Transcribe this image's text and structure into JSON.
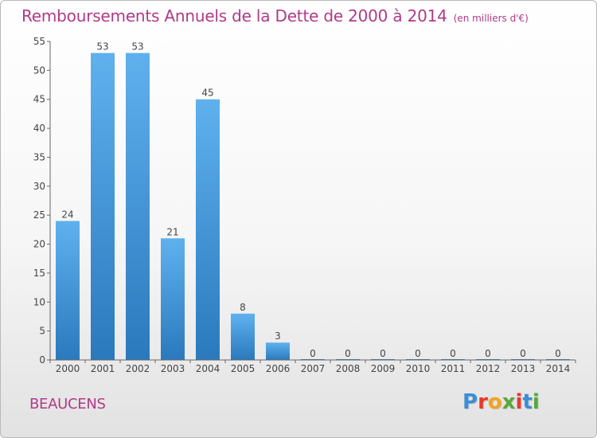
{
  "header": {
    "title": "Remboursements Annuels de la Dette de 2000 à 2014",
    "unit": "(en milliers d'€)"
  },
  "footer": {
    "commune": "BEAUCENS",
    "brand": {
      "letters": [
        "P",
        "r",
        "o",
        "x",
        "i",
        "t",
        "i"
      ],
      "colors": [
        "#3a8ed6",
        "#e8392f",
        "#f2a41f",
        "#58a83a",
        "#e8392f",
        "#3a8ed6",
        "#58a83a"
      ]
    }
  },
  "chart_data": {
    "type": "bar",
    "categories": [
      "2000",
      "2001",
      "2002",
      "2003",
      "2004",
      "2005",
      "2006",
      "2007",
      "2008",
      "2009",
      "2010",
      "2011",
      "2012",
      "2013",
      "2014"
    ],
    "values": [
      24,
      53,
      53,
      21,
      45,
      8,
      3,
      0,
      0,
      0,
      0,
      0,
      0,
      0,
      0
    ],
    "data_labels": [
      "24",
      "53",
      "53",
      "21",
      "45",
      "8",
      "3",
      "0",
      "0",
      "0",
      "0",
      "0",
      "0",
      "0",
      "0"
    ],
    "title": "Remboursements Annuels de la Dette de 2000 à 2014",
    "ylim": [
      0,
      55
    ],
    "yticks": [
      "0",
      "5",
      "10",
      "15",
      "20",
      "25",
      "30",
      "35",
      "40",
      "45",
      "50",
      "55"
    ],
    "grid": false,
    "bar_color": "#3d95dc"
  }
}
